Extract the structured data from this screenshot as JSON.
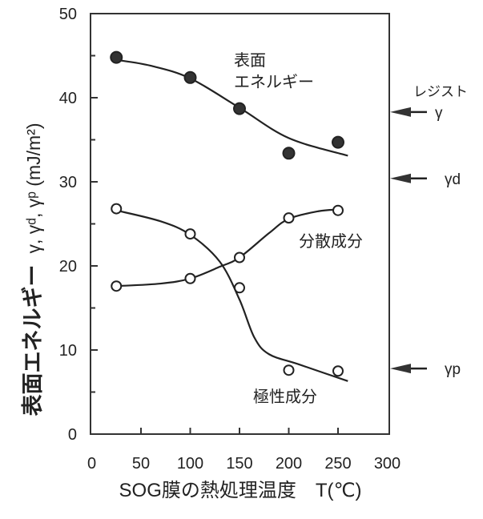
{
  "chart_data": {
    "type": "line",
    "title": "",
    "xlabel": "SOG膜の熱処理温度　T(℃)",
    "ylabel_main": "表面エネルギー",
    "ylabel_symbols": "γ, γᵈ, γᵖ (mJ/m²)",
    "xlim": [
      0,
      300
    ],
    "ylim": [
      0,
      50
    ],
    "xticks": [
      0,
      50,
      100,
      150,
      200,
      250,
      300
    ],
    "yticks": [
      0,
      10,
      20,
      30,
      40,
      50
    ],
    "grid": false,
    "series": [
      {
        "name": "表面エネルギー",
        "label_lines": [
          "表面",
          "エネルギー"
        ],
        "marker": "filled-circle",
        "x": [
          25,
          100,
          150,
          200,
          250
        ],
        "y": [
          44.8,
          42.4,
          38.7,
          33.4,
          34.7
        ],
        "fit_curve": [
          [
            25,
            44.5
          ],
          [
            60,
            43.8
          ],
          [
            100,
            42.3
          ],
          [
            150,
            38.8
          ],
          [
            200,
            35.2
          ],
          [
            260,
            33.1
          ]
        ]
      },
      {
        "name": "分散成分",
        "marker": "open-circle",
        "x": [
          25,
          100,
          150,
          200,
          250
        ],
        "y": [
          17.6,
          18.5,
          21.0,
          25.7,
          26.6
        ],
        "fit_curve": [
          [
            25,
            17.6
          ],
          [
            70,
            17.9
          ],
          [
            100,
            18.5
          ],
          [
            130,
            19.9
          ],
          [
            150,
            21.0
          ],
          [
            180,
            23.9
          ],
          [
            200,
            25.6
          ],
          [
            230,
            26.5
          ],
          [
            250,
            26.7
          ]
        ]
      },
      {
        "name": "極性成分",
        "marker": "open-circle",
        "x": [
          25,
          100,
          150,
          200,
          250
        ],
        "y": [
          26.8,
          23.8,
          17.4,
          7.6,
          7.5
        ],
        "fit_curve": [
          [
            25,
            26.6
          ],
          [
            70,
            25.3
          ],
          [
            100,
            23.7
          ],
          [
            130,
            20.5
          ],
          [
            150,
            16.0
          ],
          [
            165,
            11.5
          ],
          [
            180,
            9.5
          ],
          [
            210,
            8.3
          ],
          [
            260,
            6.3
          ]
        ]
      }
    ],
    "reference_group_label": "レジスト",
    "reference_markers": [
      {
        "label": "γ",
        "y": 38.3
      },
      {
        "label": "γd",
        "y": 30.4
      },
      {
        "label": "γp",
        "y": 7.8
      }
    ]
  }
}
